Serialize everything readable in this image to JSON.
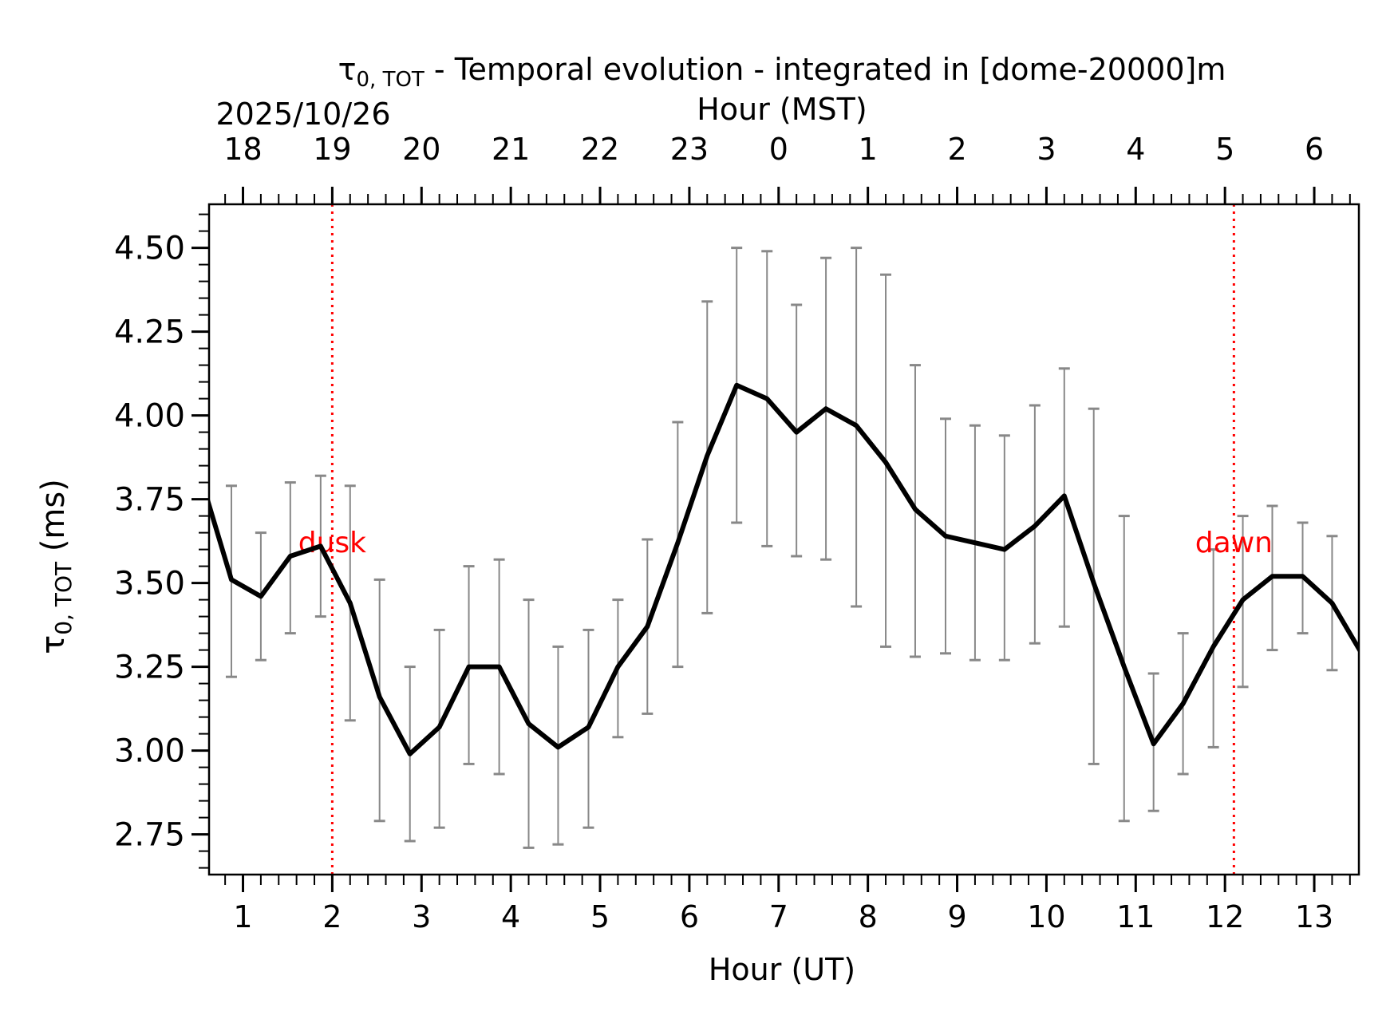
{
  "chart_data": {
    "type": "line",
    "title": {
      "tau_main": "τ",
      "tau_sub": "0, TOT",
      "rest": " - Temporal evolution - integrated in [dome-20000]m"
    },
    "date_label": "2025/10/26",
    "top_axis_label": "Hour (MST)",
    "xlabel": "Hour (UT)",
    "ylabel": {
      "tau_main": "τ",
      "tau_sub": "0, TOT",
      "rest": " (ms)"
    },
    "xlim": [
      0.62,
      13.5
    ],
    "ylim": [
      2.63,
      4.63
    ],
    "x_ticks": [
      1,
      2,
      3,
      4,
      5,
      6,
      7,
      8,
      9,
      10,
      11,
      12,
      13
    ],
    "x_tick_labels": [
      "1",
      "2",
      "3",
      "4",
      "5",
      "6",
      "7",
      "8",
      "9",
      "10",
      "11",
      "12",
      "13"
    ],
    "top_ticks": [
      {
        "utc": 1,
        "label": "18"
      },
      {
        "utc": 2,
        "label": "19"
      },
      {
        "utc": 3,
        "label": "20"
      },
      {
        "utc": 4,
        "label": "21"
      },
      {
        "utc": 5,
        "label": "22"
      },
      {
        "utc": 6,
        "label": "23"
      },
      {
        "utc": 7,
        "label": "0"
      },
      {
        "utc": 8,
        "label": "1"
      },
      {
        "utc": 9,
        "label": "2"
      },
      {
        "utc": 10,
        "label": "3"
      },
      {
        "utc": 11,
        "label": "4"
      },
      {
        "utc": 12,
        "label": "5"
      },
      {
        "utc": 13,
        "label": "6"
      }
    ],
    "y_ticks": [
      2.75,
      3.0,
      3.25,
      3.5,
      3.75,
      4.0,
      4.25,
      4.5
    ],
    "y_tick_labels": [
      "2.75",
      "3.00",
      "3.25",
      "3.50",
      "3.75",
      "4.00",
      "4.25",
      "4.50"
    ],
    "series": [
      {
        "color": "#000000",
        "errorbar_color": "#888888",
        "x": [
          0.6,
          0.87,
          1.2,
          1.53,
          1.87,
          2.2,
          2.53,
          2.87,
          3.2,
          3.53,
          3.87,
          4.2,
          4.53,
          4.87,
          5.2,
          5.53,
          5.87,
          6.2,
          6.53,
          6.87,
          7.2,
          7.53,
          7.87,
          8.2,
          8.53,
          8.87,
          9.2,
          9.53,
          9.87,
          10.2,
          10.53,
          10.87,
          11.2,
          11.53,
          11.87,
          12.2,
          12.53,
          12.87,
          13.2,
          13.53
        ],
        "y": [
          3.75,
          3.51,
          3.46,
          3.58,
          3.61,
          3.44,
          3.16,
          2.99,
          3.07,
          3.25,
          3.25,
          3.08,
          3.01,
          3.07,
          3.25,
          3.37,
          3.62,
          3.88,
          4.09,
          4.05,
          3.95,
          4.02,
          3.97,
          3.86,
          3.72,
          3.64,
          3.62,
          3.6,
          3.67,
          3.76,
          3.5,
          3.25,
          3.02,
          3.14,
          3.31,
          3.45,
          3.52,
          3.52,
          3.44,
          3.29
        ],
        "err_low": [
          null,
          3.22,
          3.27,
          3.35,
          3.4,
          3.09,
          2.79,
          2.73,
          2.77,
          2.96,
          2.93,
          2.71,
          2.72,
          2.77,
          3.04,
          3.11,
          3.25,
          3.41,
          3.68,
          3.61,
          3.58,
          3.57,
          3.43,
          3.31,
          3.28,
          3.29,
          3.27,
          3.27,
          3.32,
          3.37,
          2.96,
          2.79,
          2.82,
          2.93,
          3.01,
          3.19,
          3.3,
          3.35,
          3.24,
          null
        ],
        "err_high": [
          null,
          3.79,
          3.65,
          3.8,
          3.82,
          3.79,
          3.51,
          3.25,
          3.36,
          3.55,
          3.57,
          3.45,
          3.31,
          3.36,
          3.45,
          3.63,
          3.98,
          4.34,
          4.5,
          4.49,
          4.33,
          4.47,
          4.5,
          4.42,
          4.15,
          3.99,
          3.97,
          3.94,
          4.03,
          4.14,
          4.02,
          3.7,
          3.23,
          3.35,
          3.6,
          3.7,
          3.73,
          3.68,
          3.64,
          null
        ]
      }
    ],
    "annotations": [
      {
        "type": "vline",
        "x": 2.0,
        "color": "#ff0000",
        "label": "dusk",
        "label_y": 3.62
      },
      {
        "type": "vline",
        "x": 12.1,
        "color": "#ff0000",
        "label": "dawn",
        "label_y": 3.62
      }
    ],
    "grid": false,
    "legend": "none"
  }
}
